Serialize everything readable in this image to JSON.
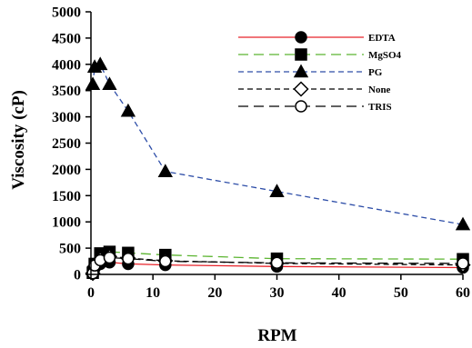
{
  "chart_data": {
    "type": "line",
    "title": "",
    "xlabel": "RPM",
    "ylabel": "Viscosity (cP)",
    "xlim": [
      0,
      60
    ],
    "ylim": [
      0,
      5000
    ],
    "xticks": [
      0,
      10,
      20,
      30,
      40,
      50,
      60
    ],
    "yticks": [
      0,
      500,
      1000,
      1500,
      2000,
      2500,
      3000,
      3500,
      4000,
      4500,
      5000
    ],
    "grid": false,
    "legend_position": "top-right",
    "series": [
      {
        "name": "EDTA",
        "color": "#e8232a",
        "dash": "solid",
        "marker": "circle",
        "marker_fill": "#000000",
        "x": [
          0.3,
          0.6,
          1.5,
          3,
          6,
          12,
          30,
          60
        ],
        "y": [
          20,
          120,
          200,
          230,
          200,
          180,
          150,
          130
        ]
      },
      {
        "name": "MgSO4",
        "color": "#5cb531",
        "dash": "long-dash",
        "marker": "square",
        "marker_fill": "#000000",
        "x": [
          0.3,
          0.6,
          1.5,
          3,
          6,
          12,
          30,
          60
        ],
        "y": [
          30,
          200,
          400,
          430,
          410,
          370,
          300,
          290
        ]
      },
      {
        "name": "PG",
        "color": "#2e4ea8",
        "dash": "short-dash",
        "marker": "triangle",
        "marker_fill": "#000000",
        "x": [
          0.3,
          0.6,
          1.5,
          3,
          6,
          12,
          30,
          60
        ],
        "y": [
          3620,
          3950,
          4000,
          3620,
          3110,
          1960,
          1580,
          950
        ]
      },
      {
        "name": "None",
        "color": "#000000",
        "dash": "short-dash",
        "marker": "diamond",
        "marker_fill": "#ffffff",
        "x": [
          0.3,
          0.6,
          1.5,
          3,
          6,
          12,
          30,
          60
        ],
        "y": [
          20,
          150,
          290,
          340,
          310,
          260,
          210,
          180
        ]
      },
      {
        "name": "TRIS",
        "color": "#000000",
        "dash": "long-dash",
        "marker": "circle",
        "marker_fill": "#ffffff",
        "x": [
          0.3,
          0.6,
          1.5,
          3,
          6,
          12,
          30,
          60
        ],
        "y": [
          20,
          170,
          270,
          320,
          300,
          250,
          220,
          210
        ]
      }
    ]
  }
}
